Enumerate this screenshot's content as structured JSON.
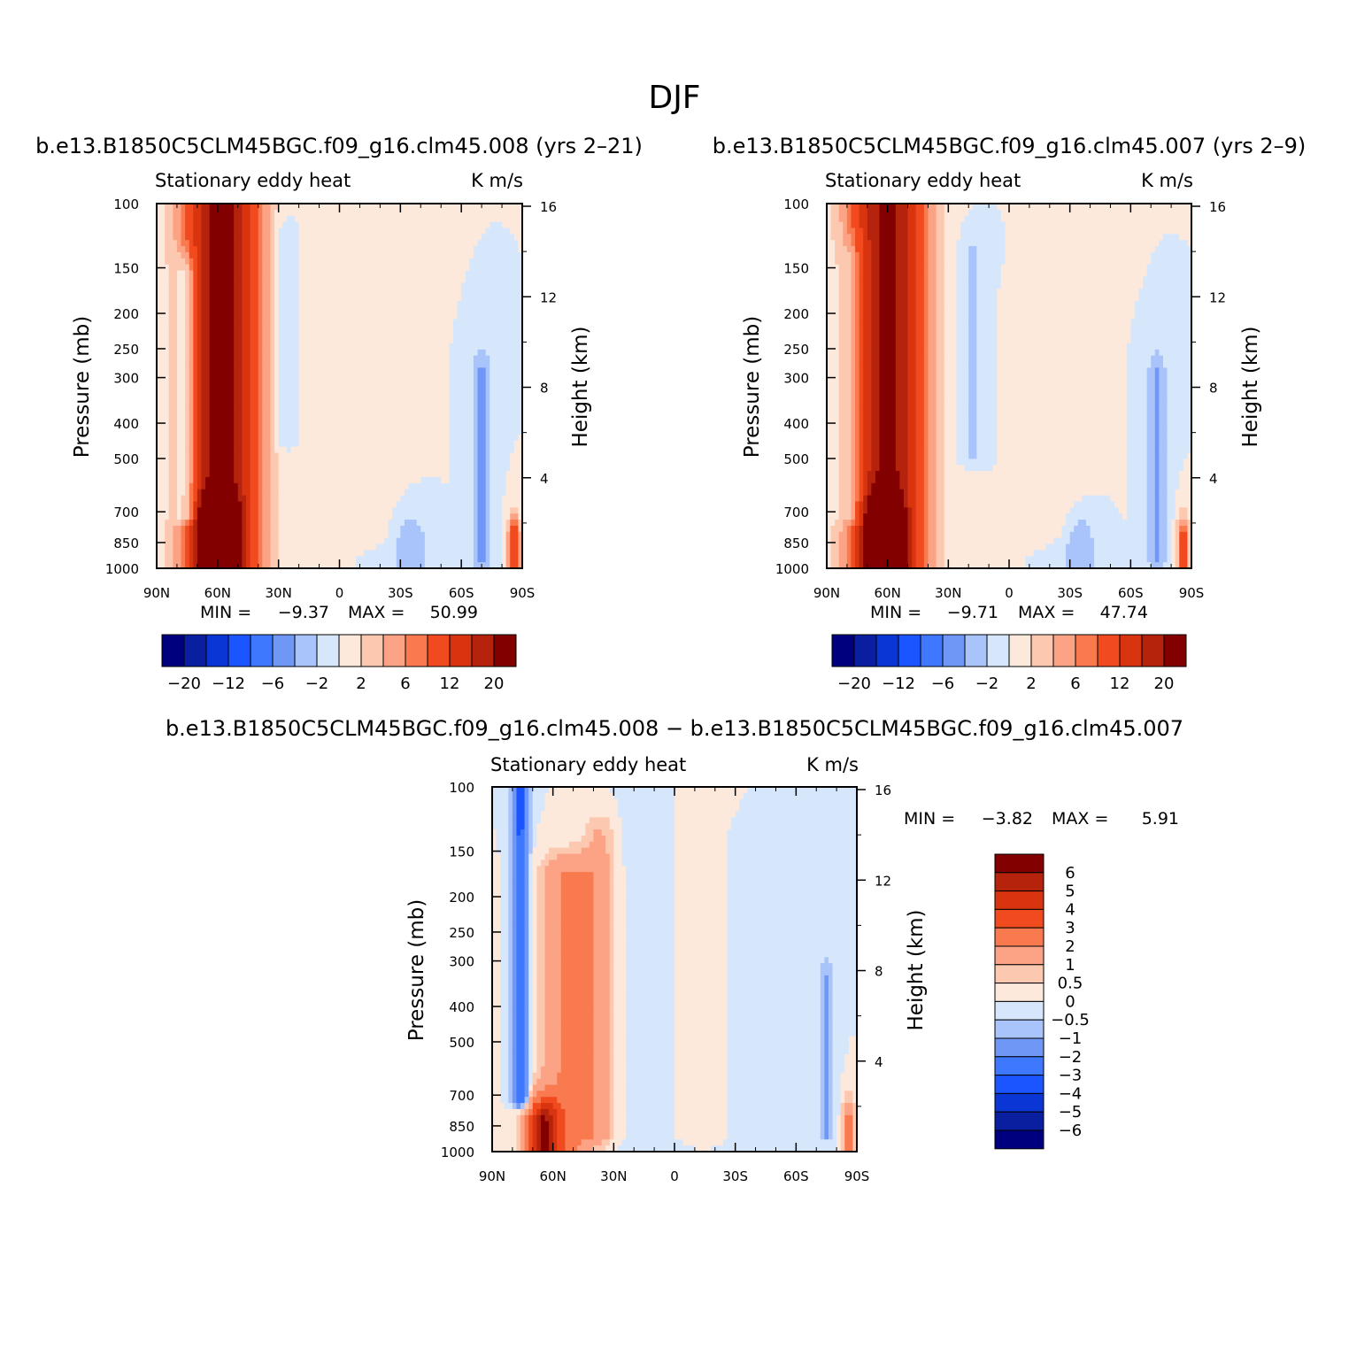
{
  "title": "DJF",
  "colors": {
    "ramp": [
      "#00007f",
      "#0a1fa0",
      "#0a36d6",
      "#1a55ff",
      "#3e78ff",
      "#6f97f5",
      "#a9c4fa",
      "#d6e7fc",
      "#fde8dc",
      "#fcc8b0",
      "#fba384",
      "#fa7a50",
      "#f24a1f",
      "#d8340f",
      "#b5230c",
      "#820000"
    ]
  },
  "panels": [
    {
      "title": "b.e13.B1850C5CLM45BGC.f09_g16.clm45.008 (yrs 2–21)",
      "left_string": "Stationary eddy heat",
      "right_string": "K m/s",
      "ylabel": "Pressure (mb)",
      "ylabel_right": "Height (km)",
      "stats": {
        "min_label": "MIN =",
        "min": "−9.37",
        "max_label": "MAX =",
        "max": "50.99"
      }
    },
    {
      "title": "b.e13.B1850C5CLM45BGC.f09_g16.clm45.007 (yrs 2–9)",
      "left_string": "Stationary eddy heat",
      "right_string": "K m/s",
      "ylabel": "Pressure (mb)",
      "ylabel_right": "Height (km)",
      "stats": {
        "min_label": "MIN =",
        "min": "−9.71",
        "max_label": "MAX =",
        "max": "47.74"
      }
    },
    {
      "title": "b.e13.B1850C5CLM45BGC.f09_g16.clm45.008 − b.e13.B1850C5CLM45BGC.f09_g16.clm45.007",
      "left_string": "Stationary eddy heat",
      "right_string": "K m/s",
      "ylabel": "Pressure (mb)",
      "ylabel_right": "Height (km)",
      "stats": {
        "min_label": "MIN =",
        "min": "−3.82",
        "max_label": "MAX =",
        "max": "5.91"
      }
    }
  ],
  "chart_data": {
    "type": "heatmap",
    "x_ticks": [
      "90N",
      "60N",
      "30N",
      "0",
      "30S",
      "60S",
      "90S"
    ],
    "x_values": [
      90,
      60,
      30,
      0,
      -30,
      -60,
      -90
    ],
    "y_ticks": [
      "100",
      "150",
      "200",
      "250",
      "300",
      "400",
      "500",
      "700",
      "850",
      "1000"
    ],
    "y_values": [
      100,
      150,
      200,
      250,
      300,
      400,
      500,
      700,
      850,
      1000
    ],
    "y_scale": "log",
    "height_ticks": [
      "16",
      "12",
      "8",
      "4"
    ],
    "height_values": [
      16,
      12,
      8,
      4
    ],
    "colorbar_full": {
      "labels": [
        "−20",
        "−12",
        "−6",
        "−2",
        "2",
        "6",
        "12",
        "20"
      ]
    },
    "colorbar_diff": {
      "labels": [
        "6",
        "5",
        "4",
        "3",
        "2",
        "1",
        "0.5",
        "0",
        "−0.5",
        "−1",
        "−2",
        "−3",
        "−4",
        "−5",
        "−6"
      ]
    },
    "fields": [
      {
        "name": "clm45.008 (yrs 2-21)",
        "features": [
          {
            "lat": 58,
            "p": 400,
            "width": 18,
            "amp": 22,
            "top": 100,
            "bottom": 1000
          },
          {
            "lat": 60,
            "p": 950,
            "width": 8,
            "amp": 34,
            "top": 750,
            "bottom": 1000
          },
          {
            "lat": 75,
            "p": 420,
            "width": 6,
            "amp": -6,
            "top": 160,
            "bottom": 720
          },
          {
            "lat": 27,
            "p": 250,
            "width": 5,
            "amp": -2.5,
            "top": 130,
            "bottom": 450
          },
          {
            "lat": -10,
            "p": 400,
            "width": 15,
            "amp": 1.2,
            "top": 200,
            "bottom": 800
          },
          {
            "lat": -70,
            "p": 420,
            "width": 5,
            "amp": -5,
            "top": 300,
            "bottom": 950
          },
          {
            "lat": -35,
            "p": 950,
            "width": 8,
            "amp": -4,
            "top": 850,
            "bottom": 1000
          },
          {
            "lat": -86,
            "p": 990,
            "width": 3,
            "amp": 12,
            "top": 850,
            "bottom": 1000
          }
        ]
      },
      {
        "name": "clm45.007 (yrs 2-9)",
        "features": [
          {
            "lat": 60,
            "p": 400,
            "width": 18,
            "amp": 21,
            "top": 100,
            "bottom": 1000
          },
          {
            "lat": 62,
            "p": 950,
            "width": 8,
            "amp": 30,
            "top": 750,
            "bottom": 1000
          },
          {
            "lat": 77,
            "p": 400,
            "width": 7,
            "amp": -4,
            "top": 150,
            "bottom": 720
          },
          {
            "lat": 18,
            "p": 300,
            "width": 6,
            "amp": -2.5,
            "top": 140,
            "bottom": 500
          },
          {
            "lat": -20,
            "p": 400,
            "width": 14,
            "amp": 1.2,
            "top": 200,
            "bottom": 800
          },
          {
            "lat": -73,
            "p": 420,
            "width": 5,
            "amp": -4.5,
            "top": 300,
            "bottom": 950
          },
          {
            "lat": -35,
            "p": 950,
            "width": 8,
            "amp": -4,
            "top": 850,
            "bottom": 1000
          },
          {
            "lat": -86,
            "p": 990,
            "width": 3,
            "amp": 10,
            "top": 850,
            "bottom": 1000
          }
        ]
      },
      {
        "name": "difference 008 - 007",
        "features": [
          {
            "lat": 76,
            "p": 350,
            "width": 4,
            "amp": -3.2,
            "top": 100,
            "bottom": 720
          },
          {
            "lat": 52,
            "p": 550,
            "width": 14,
            "amp": 2.2,
            "top": 180,
            "bottom": 1000
          },
          {
            "lat": 65,
            "p": 980,
            "width": 8,
            "amp": 5.5,
            "top": 850,
            "bottom": 1000
          },
          {
            "lat": 37,
            "p": 300,
            "width": 8,
            "amp": 1.1,
            "top": 140,
            "bottom": 900
          },
          {
            "lat": 12,
            "p": 500,
            "width": 12,
            "amp": -0.5,
            "top": 100,
            "bottom": 1000
          },
          {
            "lat": -10,
            "p": 400,
            "width": 12,
            "amp": 0.35,
            "top": 100,
            "bottom": 900
          },
          {
            "lat": -45,
            "p": 500,
            "width": 14,
            "amp": -0.4,
            "top": 150,
            "bottom": 1000
          },
          {
            "lat": -75,
            "p": 450,
            "width": 4,
            "amp": -1.2,
            "top": 350,
            "bottom": 900
          },
          {
            "lat": -86,
            "p": 950,
            "width": 3,
            "amp": 2.5,
            "top": 850,
            "bottom": 1000
          }
        ]
      }
    ],
    "levels_full": [
      -20,
      -16,
      -12,
      -8,
      -6,
      -4,
      -2,
      0,
      2,
      4,
      6,
      8,
      12,
      16,
      20
    ],
    "levels_diff": [
      -6,
      -5,
      -4,
      -3,
      -2,
      -1,
      -0.5,
      0,
      0.5,
      1,
      2,
      3,
      4,
      5,
      6
    ]
  }
}
